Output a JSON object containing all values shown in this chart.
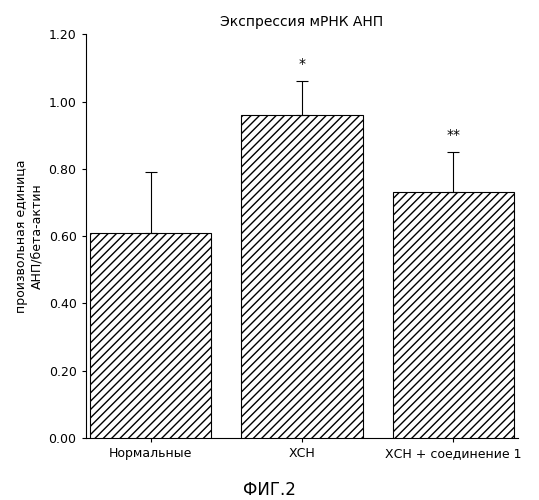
{
  "title": "Экспрессия мРНК АНП",
  "ylabel_line1": "произвольная единица",
  "ylabel_line2": "АНП/бета-актин",
  "fig_label": "ФИГ.2",
  "categories": [
    "Нормальные",
    "ХСН",
    "ХСН + соединение 1"
  ],
  "values": [
    0.61,
    0.96,
    0.73
  ],
  "errors": [
    0.18,
    0.1,
    0.12
  ],
  "significance": [
    "",
    "*",
    "**"
  ],
  "ylim": [
    0.0,
    1.2
  ],
  "yticks": [
    0.0,
    0.2,
    0.4,
    0.6,
    0.8,
    1.0,
    1.2
  ],
  "bar_width": 0.28,
  "bar_facecolor": "white",
  "bar_edgecolor": "black",
  "hatch": "////",
  "background_color": "white",
  "title_fontsize": 10,
  "ylabel_fontsize": 9,
  "tick_fontsize": 9,
  "xtick_fontsize": 9,
  "sig_fontsize": 10,
  "fig_label_fontsize": 12,
  "x_positions": [
    0.15,
    0.5,
    0.85
  ]
}
